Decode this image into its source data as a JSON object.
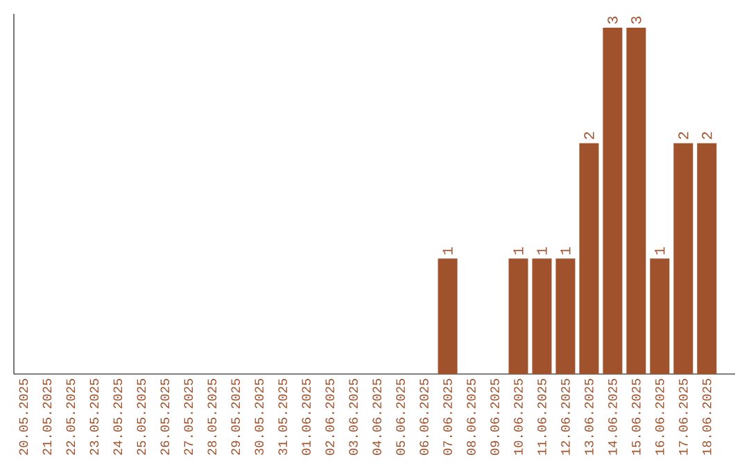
{
  "chart_data": {
    "type": "bar",
    "categories": [
      "20.05.2025",
      "21.05.2025",
      "22.05.2025",
      "23.05.2025",
      "24.05.2025",
      "25.05.2025",
      "26.05.2025",
      "27.05.2025",
      "28.05.2025",
      "29.05.2025",
      "30.05.2025",
      "31.05.2025",
      "01.06.2025",
      "02.06.2025",
      "03.06.2025",
      "04.06.2025",
      "05.06.2025",
      "06.06.2025",
      "07.06.2025",
      "08.06.2025",
      "09.06.2025",
      "10.06.2025",
      "11.06.2025",
      "12.06.2025",
      "13.06.2025",
      "14.06.2025",
      "15.06.2025",
      "16.06.2025",
      "17.06.2025",
      "18.06.2025"
    ],
    "values": [
      null,
      null,
      null,
      null,
      null,
      null,
      null,
      null,
      null,
      null,
      null,
      null,
      null,
      null,
      null,
      null,
      null,
      null,
      1,
      null,
      null,
      1,
      1,
      1,
      2,
      3,
      3,
      1,
      2,
      2
    ],
    "data_labels": true,
    "color": "#a0522d",
    "grid": false
  }
}
